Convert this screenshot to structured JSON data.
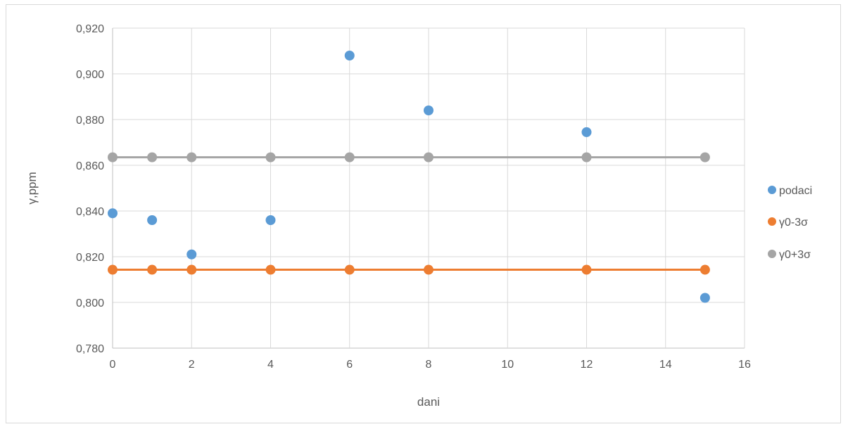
{
  "chart_data": {
    "type": "scatter",
    "title": "",
    "xlabel": "dani",
    "ylabel": "γ,ppm",
    "xlim": [
      0,
      16
    ],
    "ylim": [
      0.78,
      0.92
    ],
    "x_ticks": [
      "0",
      "2",
      "4",
      "6",
      "8",
      "10",
      "12",
      "14",
      "16"
    ],
    "y_ticks": [
      "0,780",
      "0,800",
      "0,820",
      "0,840",
      "0,860",
      "0,880",
      "0,900",
      "0,920"
    ],
    "grid": true,
    "legend_position": "right",
    "series": [
      {
        "name": "podaci",
        "color": "#5b9bd5",
        "mode": "markers",
        "x": [
          0,
          1,
          2,
          4,
          6,
          8,
          12,
          15
        ],
        "y": [
          0.839,
          0.836,
          0.821,
          0.836,
          0.908,
          0.884,
          0.8745,
          0.802
        ]
      },
      {
        "name": "γ0-3σ",
        "color": "#ed7d31",
        "mode": "lines+markers",
        "x": [
          0,
          1,
          2,
          4,
          6,
          8,
          12,
          15
        ],
        "y": [
          0.8143,
          0.8143,
          0.8143,
          0.8143,
          0.8143,
          0.8143,
          0.8143,
          0.8143
        ]
      },
      {
        "name": "γ0+3σ",
        "color": "#a5a5a5",
        "mode": "lines+markers",
        "x": [
          0,
          1,
          2,
          4,
          6,
          8,
          12,
          15
        ],
        "y": [
          0.8635,
          0.8635,
          0.8635,
          0.8635,
          0.8635,
          0.8635,
          0.8635,
          0.8635
        ]
      }
    ]
  }
}
